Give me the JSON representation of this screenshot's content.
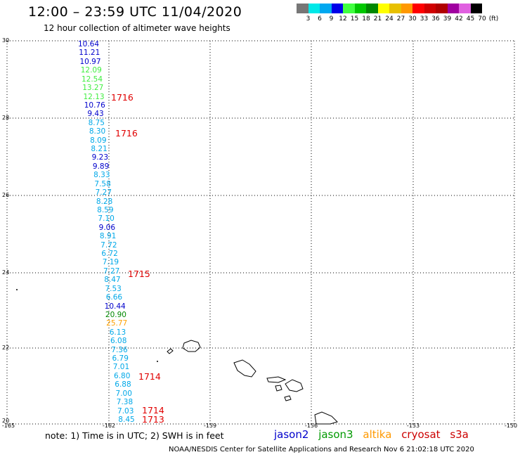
{
  "header": {
    "title": "12:00 – 23:59 UTC 11/04/2020",
    "subtitle": "12 hour collection of altimeter wave heights"
  },
  "colorbar": {
    "colors": [
      "#777777",
      "#00e8e8",
      "#00a8f0",
      "#0000e8",
      "#40ff40",
      "#00c800",
      "#008800",
      "#ffff00",
      "#e8c000",
      "#ff9800",
      "#ff0000",
      "#d00000",
      "#b00000",
      "#a000a0",
      "#e060e0",
      "#000000"
    ],
    "labels": [
      "3",
      "6",
      "9",
      "12",
      "15",
      "18",
      "21",
      "24",
      "27",
      "30",
      "33",
      "36",
      "39",
      "42",
      "45",
      "70",
      "(ft)"
    ]
  },
  "axes": {
    "lat_labels": [
      "30",
      "28",
      "26",
      "24",
      "22",
      "20"
    ],
    "lon_labels": [
      "-165",
      "-162",
      "-159",
      "-156",
      "-153",
      "-150"
    ]
  },
  "wave_colors": {
    "jason2": "#0000cc",
    "cyan": "#00a8e8",
    "green": "#40ee40",
    "darkgreen": "#008800",
    "orange": "#ffa000"
  },
  "wave_heights": [
    {
      "v": "10.64",
      "c": "jason2"
    },
    {
      "v": "11.21",
      "c": "jason2"
    },
    {
      "v": "10.97",
      "c": "jason2"
    },
    {
      "v": "12.09",
      "c": "green"
    },
    {
      "v": "12.54",
      "c": "green"
    },
    {
      "v": "13.27",
      "c": "green"
    },
    {
      "v": "12.13",
      "c": "green"
    },
    {
      "v": "10.76",
      "c": "jason2"
    },
    {
      "v": "9.43",
      "c": "jason2"
    },
    {
      "v": "8.75",
      "c": "cyan"
    },
    {
      "v": "8.30",
      "c": "cyan"
    },
    {
      "v": "8.09",
      "c": "cyan"
    },
    {
      "v": "8.21",
      "c": "cyan"
    },
    {
      "v": "9.23",
      "c": "jason2"
    },
    {
      "v": "9.89",
      "c": "jason2"
    },
    {
      "v": "8.33",
      "c": "cyan"
    },
    {
      "v": "7.58",
      "c": "cyan"
    },
    {
      "v": "7.27",
      "c": "cyan"
    },
    {
      "v": "8.28",
      "c": "cyan"
    },
    {
      "v": "8.59",
      "c": "cyan"
    },
    {
      "v": "7.10",
      "c": "cyan"
    },
    {
      "v": "9.06",
      "c": "jason2"
    },
    {
      "v": "8.91",
      "c": "cyan"
    },
    {
      "v": "7.72",
      "c": "cyan"
    },
    {
      "v": "6.72",
      "c": "cyan"
    },
    {
      "v": "7.19",
      "c": "cyan"
    },
    {
      "v": "7.27",
      "c": "cyan"
    },
    {
      "v": "8.47",
      "c": "cyan"
    },
    {
      "v": "7.53",
      "c": "cyan"
    },
    {
      "v": "6.66",
      "c": "cyan"
    },
    {
      "v": "10.44",
      "c": "jason2"
    },
    {
      "v": "20.90",
      "c": "darkgreen"
    },
    {
      "v": "25.77",
      "c": "orange"
    },
    {
      "v": "6.13",
      "c": "cyan"
    },
    {
      "v": "6.08",
      "c": "cyan"
    },
    {
      "v": "7.36",
      "c": "cyan"
    },
    {
      "v": "6.79",
      "c": "cyan"
    },
    {
      "v": "7.01",
      "c": "cyan"
    },
    {
      "v": "6.80",
      "c": "cyan"
    },
    {
      "v": "6.88",
      "c": "cyan"
    },
    {
      "v": "7.00",
      "c": "cyan"
    },
    {
      "v": "7.38",
      "c": "cyan"
    },
    {
      "v": "7.03",
      "c": "cyan"
    },
    {
      "v": "8.45",
      "c": "cyan"
    }
  ],
  "pass_times": [
    "1716",
    "1716",
    "1715",
    "1714",
    "1714",
    "1713"
  ],
  "note": "note: 1) Time is in UTC; 2) SWH is in feet",
  "legend": [
    {
      "label": "jason2",
      "color": "#0000cc"
    },
    {
      "label": "jason3",
      "color": "#009900"
    },
    {
      "label": "altika",
      "color": "#ff9900"
    },
    {
      "label": "cryosat",
      "color": "#cc0000"
    },
    {
      "label": "s3a",
      "color": "#cc0000"
    }
  ],
  "credit": "NOAA/NESDIS Center for Satellite Applications and Research   Nov  6 21:02:18 UTC 2020"
}
